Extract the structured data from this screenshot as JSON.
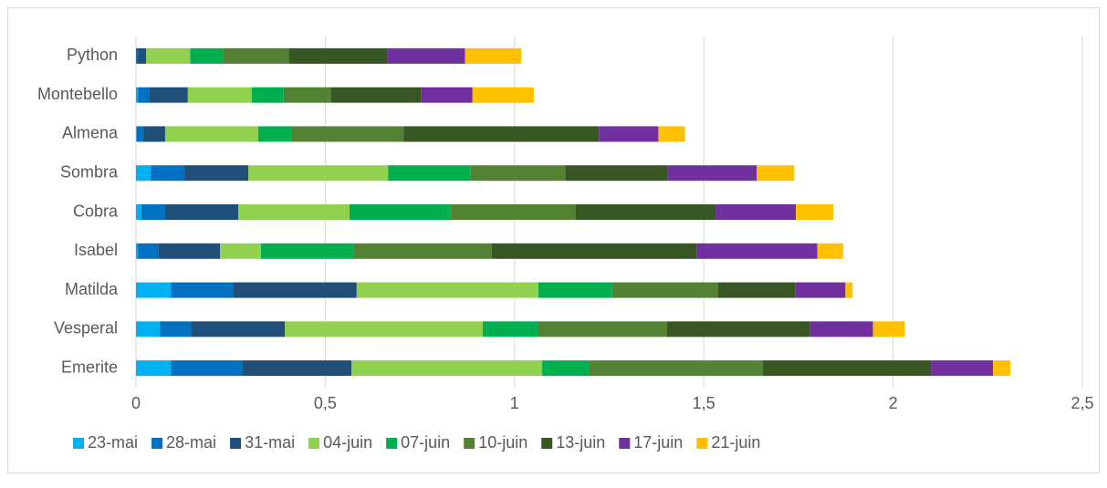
{
  "chart_data": {
    "type": "stacked-barh",
    "categories": [
      "Python",
      "Montebello",
      "Almena",
      "Sombra",
      "Cobra",
      "Isabel",
      "Matilda",
      "Vesperal",
      "Emerite"
    ],
    "series": [
      {
        "name": "23-mai",
        "color": "#00b0f0",
        "values": [
          0,
          0.005,
          0.002,
          0.039,
          0.014,
          0.005,
          0.092,
          0.063,
          0.092
        ]
      },
      {
        "name": "28-mai",
        "color": "#0070c0",
        "values": [
          0.005,
          0.031,
          0.017,
          0.089,
          0.063,
          0.055,
          0.166,
          0.084,
          0.19
        ]
      },
      {
        "name": "31-mai",
        "color": "#1f4e79",
        "values": [
          0.022,
          0.101,
          0.058,
          0.169,
          0.193,
          0.162,
          0.325,
          0.246,
          0.287
        ]
      },
      {
        "name": "04-juin",
        "color": "#92d050",
        "values": [
          0.116,
          0.169,
          0.246,
          0.369,
          0.294,
          0.108,
          0.48,
          0.523,
          0.504
        ]
      },
      {
        "name": "07-juin",
        "color": "#00b050",
        "values": [
          0.087,
          0.084,
          0.087,
          0.217,
          0.268,
          0.246,
          0.195,
          0.145,
          0.125
        ]
      },
      {
        "name": "10-juin",
        "color": "#548235",
        "values": [
          0.174,
          0.125,
          0.297,
          0.251,
          0.33,
          0.364,
          0.28,
          0.342,
          0.458
        ]
      },
      {
        "name": "13-juin",
        "color": "#375623",
        "values": [
          0.26,
          0.239,
          0.516,
          0.27,
          0.369,
          0.542,
          0.203,
          0.378,
          0.444
        ]
      },
      {
        "name": "17-juin",
        "color": "#7030a0",
        "values": [
          0.205,
          0.135,
          0.157,
          0.236,
          0.212,
          0.318,
          0.133,
          0.166,
          0.164
        ]
      },
      {
        "name": "21-juin",
        "color": "#ffc000",
        "values": [
          0.149,
          0.162,
          0.07,
          0.099,
          0.099,
          0.068,
          0.019,
          0.084,
          0.046
        ]
      }
    ],
    "xlim": [
      0,
      2.5
    ],
    "xticks": [
      0,
      {
        "value": 0.5,
        "label": "0,5"
      },
      1,
      {
        "value": 1.5,
        "label": "1,5"
      },
      2,
      {
        "value": 2.5,
        "label": "2,5"
      }
    ],
    "grid": true,
    "legend": "bottom"
  }
}
